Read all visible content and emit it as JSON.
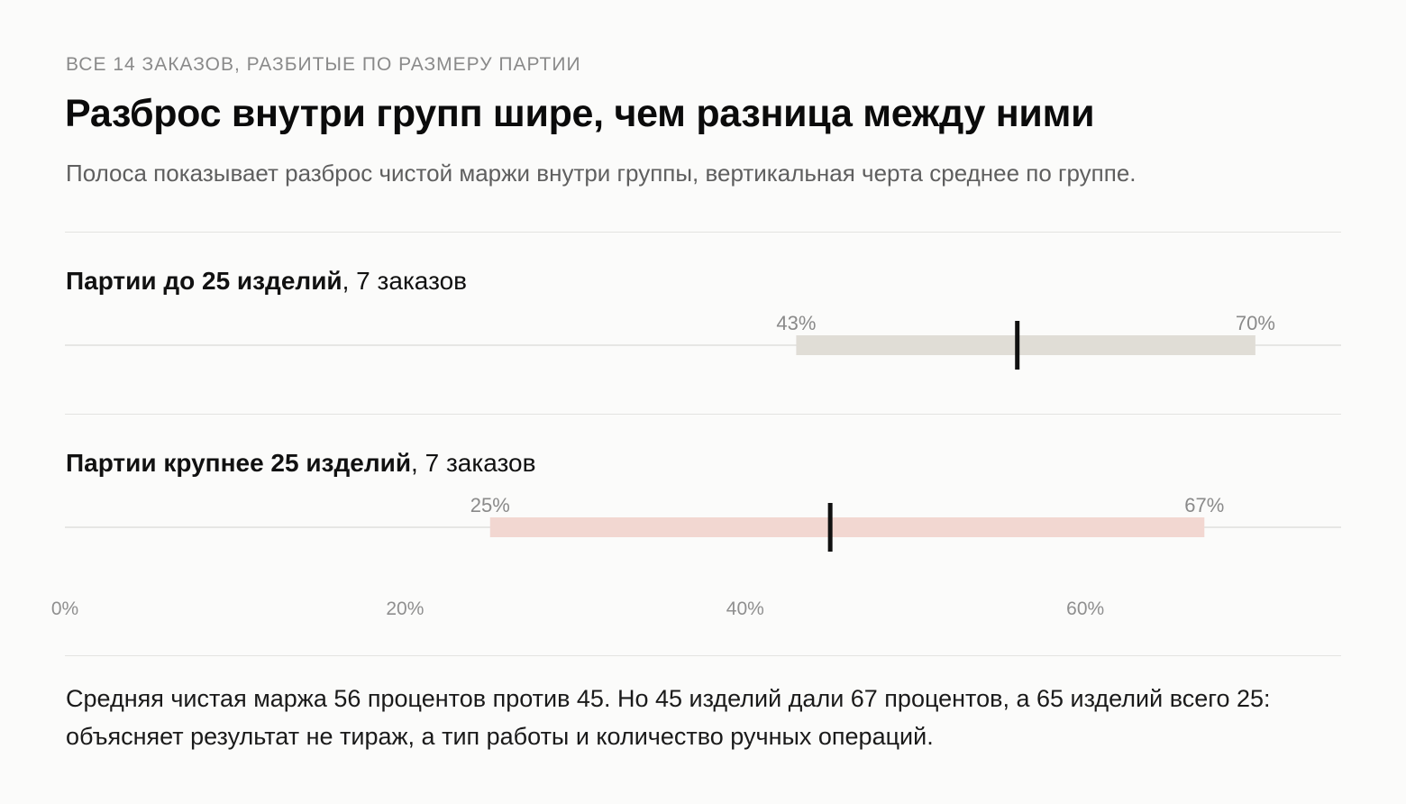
{
  "header": {
    "eyebrow": "ВСЕ 14 ЗАКАЗОВ, РАЗБИТЫЕ ПО РАЗМЕРУ ПАРТИИ",
    "title": "Разброс внутри групп шире, чем разница между ними",
    "subtitle": "Полоса показывает разброс чистой маржи внутри группы, вертикальная черта среднее по группе."
  },
  "groups": [
    {
      "name": "Партии до 25 изделий",
      "count_text": ", 7 заказов"
    },
    {
      "name": "Партии крупнее 25 изделий",
      "count_text": ", 7 заказов"
    }
  ],
  "footer": {
    "text": "Средняя чистая маржа 56 процентов против 45. Но 45 изделий дали 67 процентов, а 65 изделий всего 25: объясняет результат не тираж, а тип работы и количество ручных операций."
  },
  "colors": {
    "bar_small": "#e0ddd6",
    "bar_large": "#f2d7d1",
    "mean_mark": "#111111",
    "baseline": "#e6e6e4"
  },
  "chart_data": {
    "type": "range",
    "x_ticks": [
      {
        "value": 0,
        "label": "0%"
      },
      {
        "value": 20,
        "label": "20%"
      },
      {
        "value": 40,
        "label": "40%"
      },
      {
        "value": 60,
        "label": "60%"
      }
    ],
    "xlim": [
      0,
      75
    ],
    "grid": false,
    "series": [
      {
        "name": "Партии до 25 изделий",
        "min": 43,
        "max": 70,
        "mean": 56,
        "min_label": "43%",
        "max_label": "70%"
      },
      {
        "name": "Партии крупнее 25 изделий",
        "min": 25,
        "max": 67,
        "mean": 45,
        "min_label": "25%",
        "max_label": "67%"
      }
    ]
  }
}
